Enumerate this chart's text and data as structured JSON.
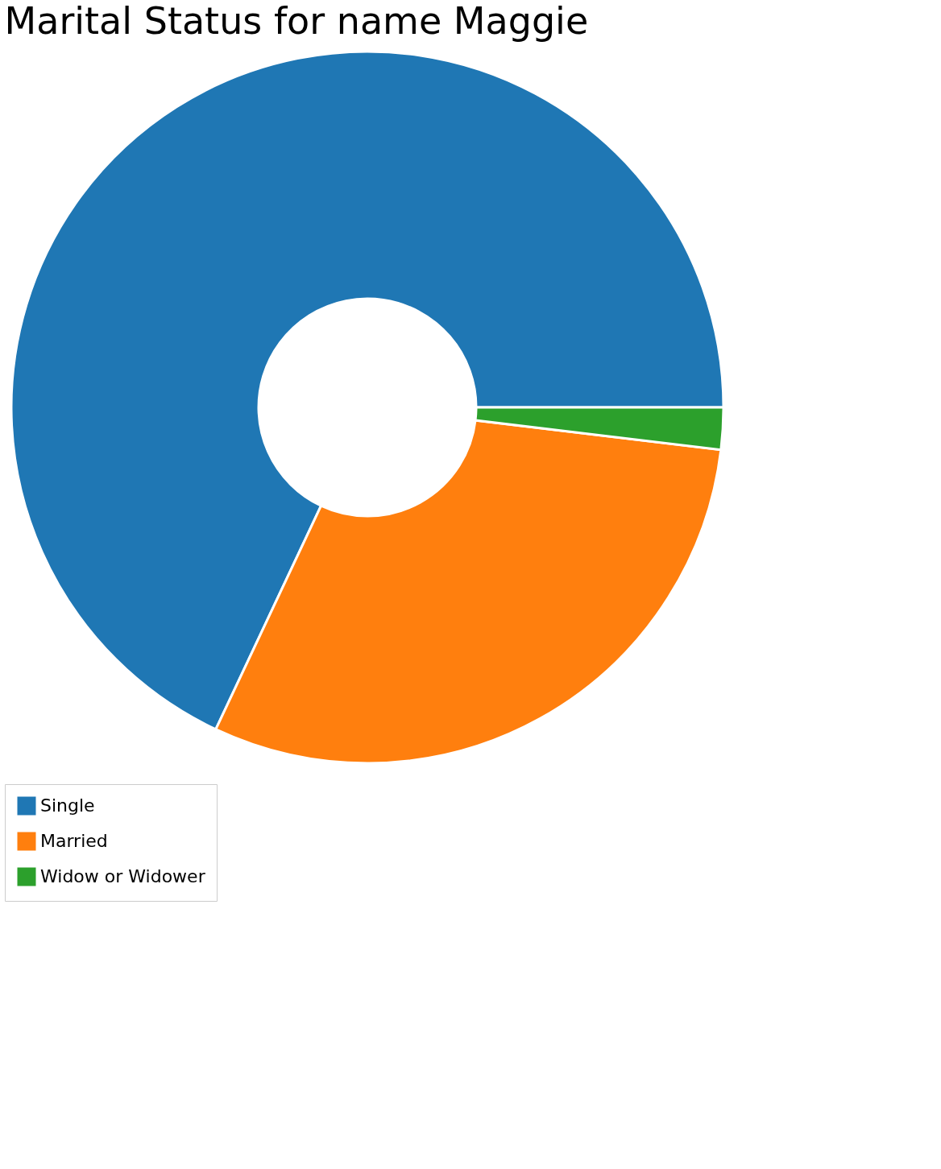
{
  "chart_data": {
    "type": "donut",
    "title": "Marital Status for name Maggie",
    "categories": [
      "Single",
      "Married",
      "Widow or Widower"
    ],
    "values": [
      68.0,
      30.1,
      1.9
    ],
    "colors": [
      "#1f77b4",
      "#ff7f0e",
      "#2ca02c"
    ],
    "legend": "bottom"
  }
}
